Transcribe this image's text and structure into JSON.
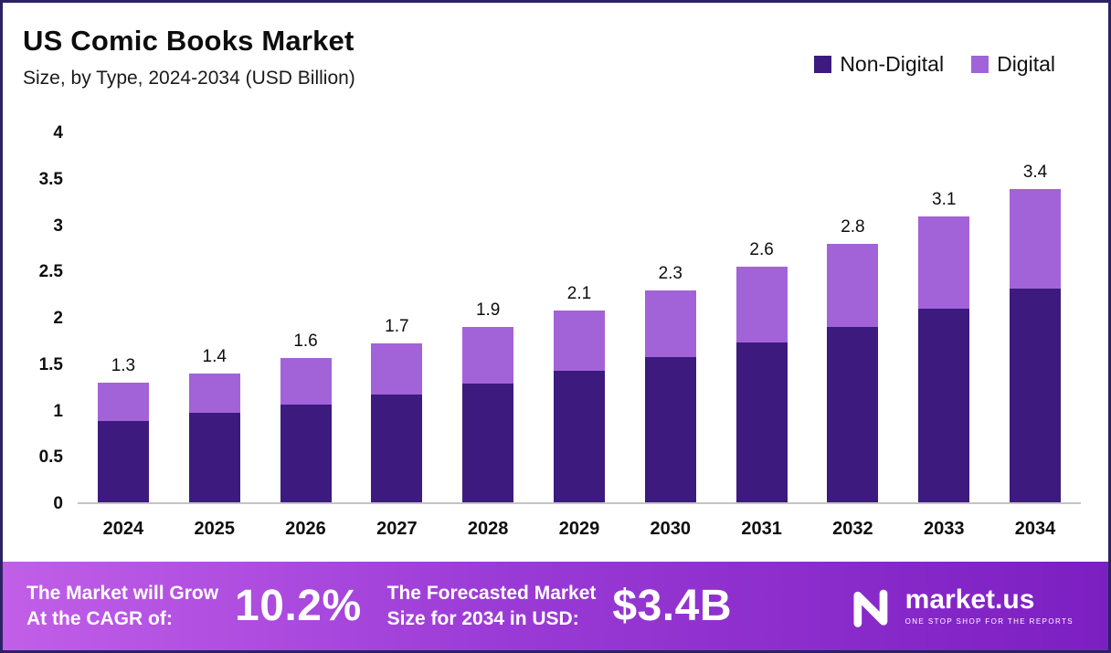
{
  "header": {
    "title": "US Comic Books Market",
    "subtitle": "Size, by Type, 2024-2034 (USD Billion)"
  },
  "legend": [
    {
      "label": "Non-Digital",
      "color": "#3d1a7e"
    },
    {
      "label": "Digital",
      "color": "#a263d8"
    }
  ],
  "chart_data": {
    "type": "bar",
    "stacked": true,
    "title": "US Comic Books Market Size, by Type, 2024-2034 (USD Billion)",
    "categories": [
      "2024",
      "2025",
      "2026",
      "2027",
      "2028",
      "2029",
      "2030",
      "2031",
      "2032",
      "2033",
      "2034"
    ],
    "series": [
      {
        "name": "Non-Digital",
        "color": "#3d1a7e",
        "values": [
          0.88,
          0.97,
          1.06,
          1.17,
          1.29,
          1.43,
          1.57,
          1.73,
          1.9,
          2.1,
          2.32
        ]
      },
      {
        "name": "Digital",
        "color": "#a263d8",
        "values": [
          0.42,
          0.43,
          0.5,
          0.55,
          0.61,
          0.65,
          0.73,
          0.82,
          0.9,
          1.0,
          1.08
        ]
      }
    ],
    "totals": [
      1.3,
      1.4,
      1.6,
      1.7,
      1.9,
      2.1,
      2.3,
      2.6,
      2.8,
      3.1,
      3.4
    ],
    "total_labels": [
      "1.3",
      "1.4",
      "1.6",
      "1.7",
      "1.9",
      "2.1",
      "2.3",
      "2.6",
      "2.8",
      "3.1",
      "3.4"
    ],
    "xlabel": "",
    "ylabel": "",
    "ylim": [
      0,
      4
    ],
    "yticks": [
      {
        "value": 0,
        "label": "0"
      },
      {
        "value": 0.5,
        "label": "0.5"
      },
      {
        "value": 1,
        "label": "1"
      },
      {
        "value": 1.5,
        "label": "1.5"
      },
      {
        "value": 2,
        "label": "2"
      },
      {
        "value": 2.5,
        "label": "2.5"
      },
      {
        "value": 3,
        "label": "3"
      },
      {
        "value": 3.5,
        "label": "3.5"
      },
      {
        "value": 4,
        "label": "4"
      }
    ],
    "legend_position": "top-right",
    "grid": false
  },
  "footer": {
    "cagr_label_line1": "The Market will Grow",
    "cagr_label_line2": "At the CAGR of:",
    "cagr_value": "10.2%",
    "forecast_label_line1": "The Forecasted Market",
    "forecast_label_line2": "Size for 2034 in USD:",
    "forecast_value": "$3.4B",
    "brand_name": "market.us",
    "brand_tagline": "ONE STOP SHOP FOR THE REPORTS"
  }
}
